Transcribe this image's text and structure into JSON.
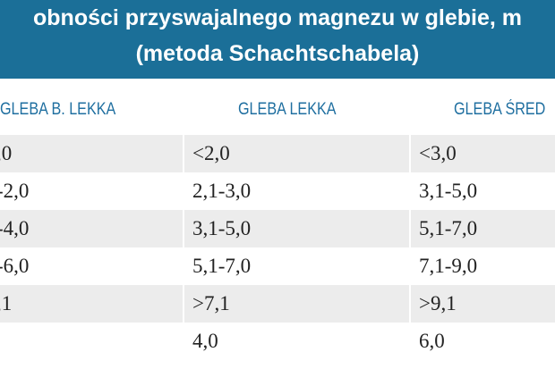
{
  "title": {
    "line1": "obności przyswajalnego magnezu w glebie, m",
    "line2": "(metoda Schachtschabela)"
  },
  "table": {
    "columns": [
      {
        "header": "GLEBA  B. LEKKA",
        "cells": [
          ",0",
          "-2,0",
          "-4,0",
          "-6,0",
          ",1"
        ]
      },
      {
        "header": "GLEBA LEKKA",
        "cells": [
          "<2,0",
          "2,1-3,0",
          "3,1-5,0",
          "5,1-7,0",
          ">7,1",
          "4,0"
        ]
      },
      {
        "header": "GLEBA ŚRED",
        "cells": [
          "<3,0",
          "3,1-5,0",
          "5,1-7,0",
          "7,1-9,0",
          ">9,1",
          "6,0"
        ]
      }
    ]
  }
}
